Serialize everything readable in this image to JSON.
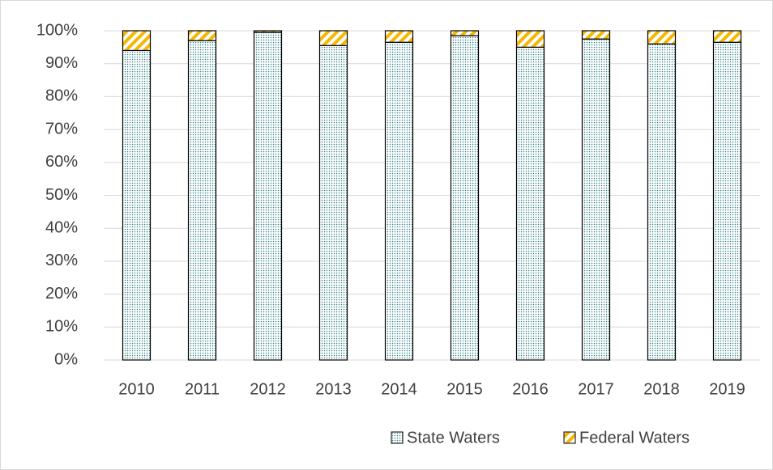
{
  "chart_data": {
    "type": "stacked_bar",
    "categories": [
      "2010",
      "2011",
      "2012",
      "2013",
      "2014",
      "2015",
      "2016",
      "2017",
      "2018",
      "2019"
    ],
    "series": [
      {
        "name": "State Waters",
        "color": "#2e7f86",
        "values": [
          94,
          97,
          99.5,
          95.5,
          96.5,
          98.5,
          95,
          97.5,
          96,
          96.5
        ]
      },
      {
        "name": "Federal Waters",
        "color": "#f5b800",
        "values": [
          6,
          3,
          0.5,
          4.5,
          3.5,
          1.5,
          5,
          2.5,
          4,
          3.5
        ]
      }
    ],
    "ylim": [
      0,
      100
    ],
    "yticks": [
      {
        "value": 0,
        "label": "0%"
      },
      {
        "value": 10,
        "label": "10%"
      },
      {
        "value": 20,
        "label": "20%"
      },
      {
        "value": 30,
        "label": "30%"
      },
      {
        "value": 40,
        "label": "40%"
      },
      {
        "value": 50,
        "label": "50%"
      },
      {
        "value": 60,
        "label": "60%"
      },
      {
        "value": 70,
        "label": "70%"
      },
      {
        "value": 80,
        "label": "80%"
      },
      {
        "value": 90,
        "label": "90%"
      },
      {
        "value": 100,
        "label": "100%"
      }
    ],
    "grid": true,
    "legend": "bottom"
  }
}
